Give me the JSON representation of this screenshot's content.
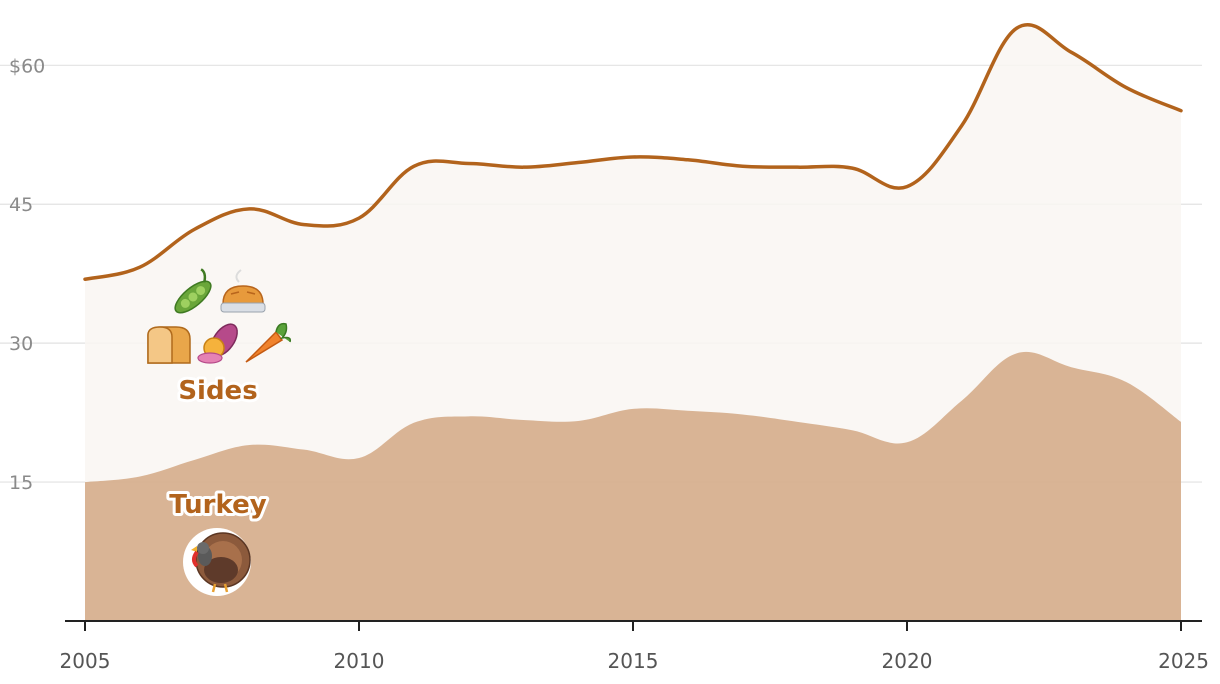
{
  "chart_data": {
    "type": "area",
    "x": [
      2005,
      2006,
      2007,
      2008,
      2009,
      2010,
      2011,
      2012,
      2013,
      2014,
      2015,
      2016,
      2017,
      2018,
      2019,
      2020,
      2021,
      2022,
      2023,
      2024,
      2025
    ],
    "series": [
      {
        "name": "Turkey",
        "values": [
          15.0,
          15.6,
          17.4,
          19.0,
          18.5,
          17.6,
          21.4,
          22.1,
          21.7,
          21.6,
          22.9,
          22.7,
          22.3,
          21.5,
          20.6,
          19.3,
          23.8,
          28.9,
          27.4,
          25.8,
          21.5
        ]
      },
      {
        "name": "Sides",
        "values": [
          21.9,
          22.6,
          24.9,
          25.5,
          24.3,
          25.9,
          27.7,
          27.3,
          27.3,
          27.9,
          27.2,
          27.1,
          26.8,
          27.5,
          28.3,
          27.6,
          29.7,
          35.1,
          34.0,
          31.8,
          33.6
        ]
      }
    ],
    "ylim": [
      0,
      65
    ],
    "yticks": [
      {
        "value": 15,
        "label": "15"
      },
      {
        "value": 30,
        "label": "30"
      },
      {
        "value": 45,
        "label": "45"
      },
      {
        "value": 60,
        "label": "$60"
      }
    ],
    "xticks": [
      {
        "value": 2005,
        "label": "2005"
      },
      {
        "value": 2010,
        "label": "2010"
      },
      {
        "value": 2015,
        "label": "2015"
      },
      {
        "value": 2020,
        "label": "2020"
      },
      {
        "value": 2025,
        "label": "2025"
      }
    ],
    "stacked": true,
    "grid": true,
    "colors": {
      "turkey_fill": "#d6ae8c",
      "sides_fill": "#f9f6f2",
      "total_line": "#b2631c",
      "label_text": "#b2631c",
      "grid": "#e2e2e2",
      "axis": "#222222"
    },
    "icons": {
      "sides": [
        "peas-icon",
        "pie-icon",
        "bread-icon",
        "sweet-potato-icon",
        "carrot-icon"
      ],
      "turkey": "turkey-icon"
    }
  }
}
